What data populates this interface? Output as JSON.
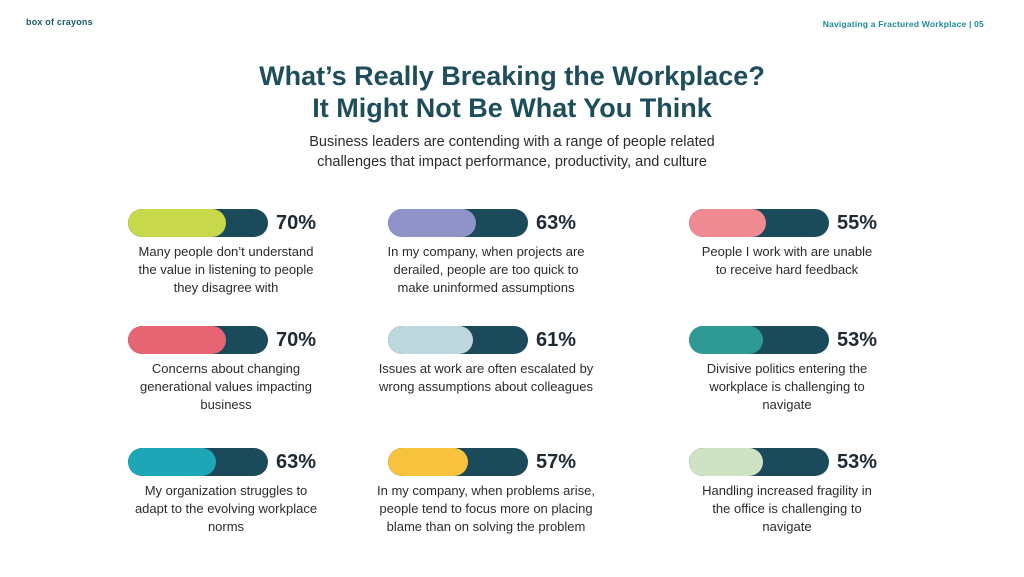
{
  "header": {
    "brand": "box of crayons",
    "doc_title": "Navigating a Fractured Workplace | 05"
  },
  "title": {
    "line1": "What’s Really Breaking the Workplace?",
    "line2": "It Might Not Be What You Think"
  },
  "subtitle": {
    "line1": "Business leaders are contending with a range of people related",
    "line2": "challenges that impact performance, productivity, and culture"
  },
  "stats": [
    {
      "value": 70,
      "label": "70%",
      "color": "#c8d84b",
      "caption": [
        "Many people don’t understand",
        "the value in listening to people",
        "they disagree with"
      ]
    },
    {
      "value": 63,
      "label": "63%",
      "color": "#8f93c8",
      "caption": [
        "In my company, when projects are",
        "derailed, people are too quick to",
        "make uninformed assumptions"
      ]
    },
    {
      "value": 55,
      "label": "55%",
      "color": "#ef8a93",
      "caption": [
        "People I work with are unable",
        "to receive hard feedback"
      ]
    },
    {
      "value": 70,
      "label": "70%",
      "color": "#e76473",
      "caption": [
        "Concerns about changing",
        "generational values impacting",
        "business"
      ]
    },
    {
      "value": 61,
      "label": "61%",
      "color": "#bdd8dd",
      "caption": [
        "Issues at work are often escalated by",
        "wrong assumptions about colleagues"
      ]
    },
    {
      "value": 53,
      "label": "53%",
      "color": "#2f9a94",
      "caption": [
        "Divisive politics entering the",
        "workplace is challenging to",
        "navigate"
      ]
    },
    {
      "value": 63,
      "label": "63%",
      "color": "#1ca6b6",
      "caption": [
        "My organization struggles to",
        "adapt to the evolving workplace",
        "norms"
      ]
    },
    {
      "value": 57,
      "label": "57%",
      "color": "#f7c23c",
      "caption": [
        "In my company, when problems arise,",
        "people tend to focus more on placing",
        "blame than on solving the problem"
      ]
    },
    {
      "value": 53,
      "label": "53%",
      "color": "#cfe2c3",
      "caption": [
        "Handling increased fragility in",
        "the office is challenging to",
        "navigate"
      ]
    }
  ]
}
